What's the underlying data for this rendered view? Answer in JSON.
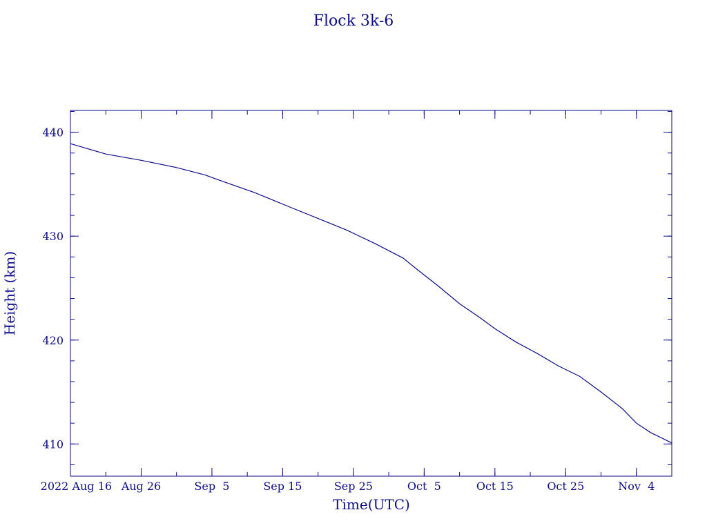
{
  "chart_data": {
    "type": "line",
    "title": "Flock 3k-6",
    "xlabel": "Time(UTC)",
    "ylabel": "Height (km)",
    "xlim": [
      "2022-08-16",
      "2022-11-09"
    ],
    "ylim": [
      406.9,
      442.1
    ],
    "grid": false,
    "x_ticks": [
      "2022-08-16",
      "2022-08-26",
      "2022-09-05",
      "2022-09-15",
      "2022-09-25",
      "2022-10-05",
      "2022-10-15",
      "2022-10-25",
      "2022-11-04"
    ],
    "x_tick_labels": [
      "2022 Aug 16",
      "Aug 26",
      "Sep  5",
      "Sep 15",
      "Sep 25",
      "Oct  5",
      "Oct 15",
      "Oct 25",
      "Nov  4"
    ],
    "y_ticks": [
      410,
      420,
      430,
      440
    ],
    "y_tick_labels": [
      "410",
      "420",
      "430",
      "440"
    ],
    "series": [
      {
        "x": [
          "2022-08-16",
          "2022-08-18",
          "2022-08-21",
          "2022-08-26",
          "2022-08-31",
          "2022-09-04",
          "2022-09-06",
          "2022-09-11",
          "2022-09-16",
          "2022-09-20",
          "2022-09-24",
          "2022-09-28",
          "2022-10-02",
          "2022-10-04",
          "2022-10-07",
          "2022-10-10",
          "2022-10-13",
          "2022-10-15",
          "2022-10-18",
          "2022-10-21",
          "2022-10-24",
          "2022-10-27",
          "2022-10-30",
          "2022-11-02",
          "2022-11-04",
          "2022-11-06",
          "2022-11-09"
        ],
        "values": [
          438.9,
          438.5,
          437.9,
          437.3,
          436.6,
          435.9,
          435.4,
          434.2,
          432.8,
          431.7,
          430.6,
          429.3,
          427.9,
          426.8,
          425.2,
          423.5,
          422.1,
          421.1,
          419.8,
          418.7,
          417.5,
          416.5,
          415.0,
          413.4,
          412.0,
          411.1,
          410.1
        ]
      }
    ]
  }
}
